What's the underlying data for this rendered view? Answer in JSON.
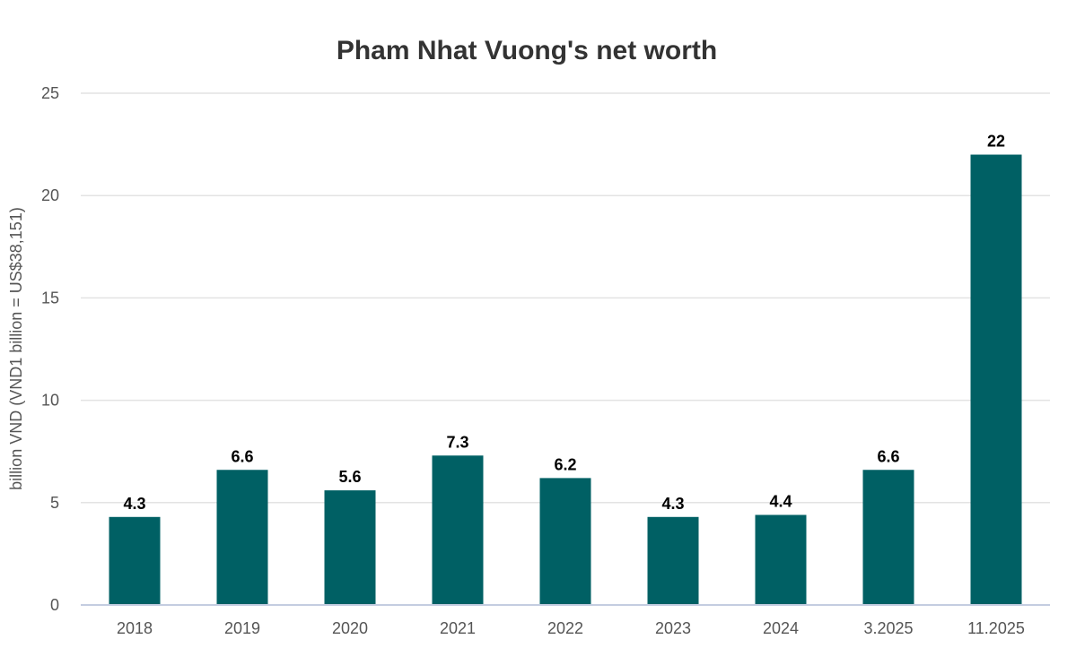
{
  "chart_data": {
    "type": "bar",
    "title": "Pham Nhat Vuong's net worth",
    "ylabel": "billion VND (VND1 billion = US$38,151)",
    "xlabel": "",
    "categories": [
      "2018",
      "2019",
      "2020",
      "2021",
      "2022",
      "2023",
      "2024",
      "3.2025",
      "11.2025"
    ],
    "values": [
      4.3,
      6.6,
      5.6,
      7.3,
      6.2,
      4.3,
      4.4,
      6.6,
      22
    ],
    "value_labels": [
      "4.3",
      "6.6",
      "5.6",
      "7.3",
      "6.2",
      "4.3",
      "4.4",
      "6.6",
      "22"
    ],
    "ylim": [
      0,
      25
    ],
    "yticks": [
      "0",
      "5",
      "10",
      "15",
      "20",
      "25"
    ],
    "grid": true,
    "legend": "none",
    "colors": {
      "bar": "#006064"
    }
  }
}
